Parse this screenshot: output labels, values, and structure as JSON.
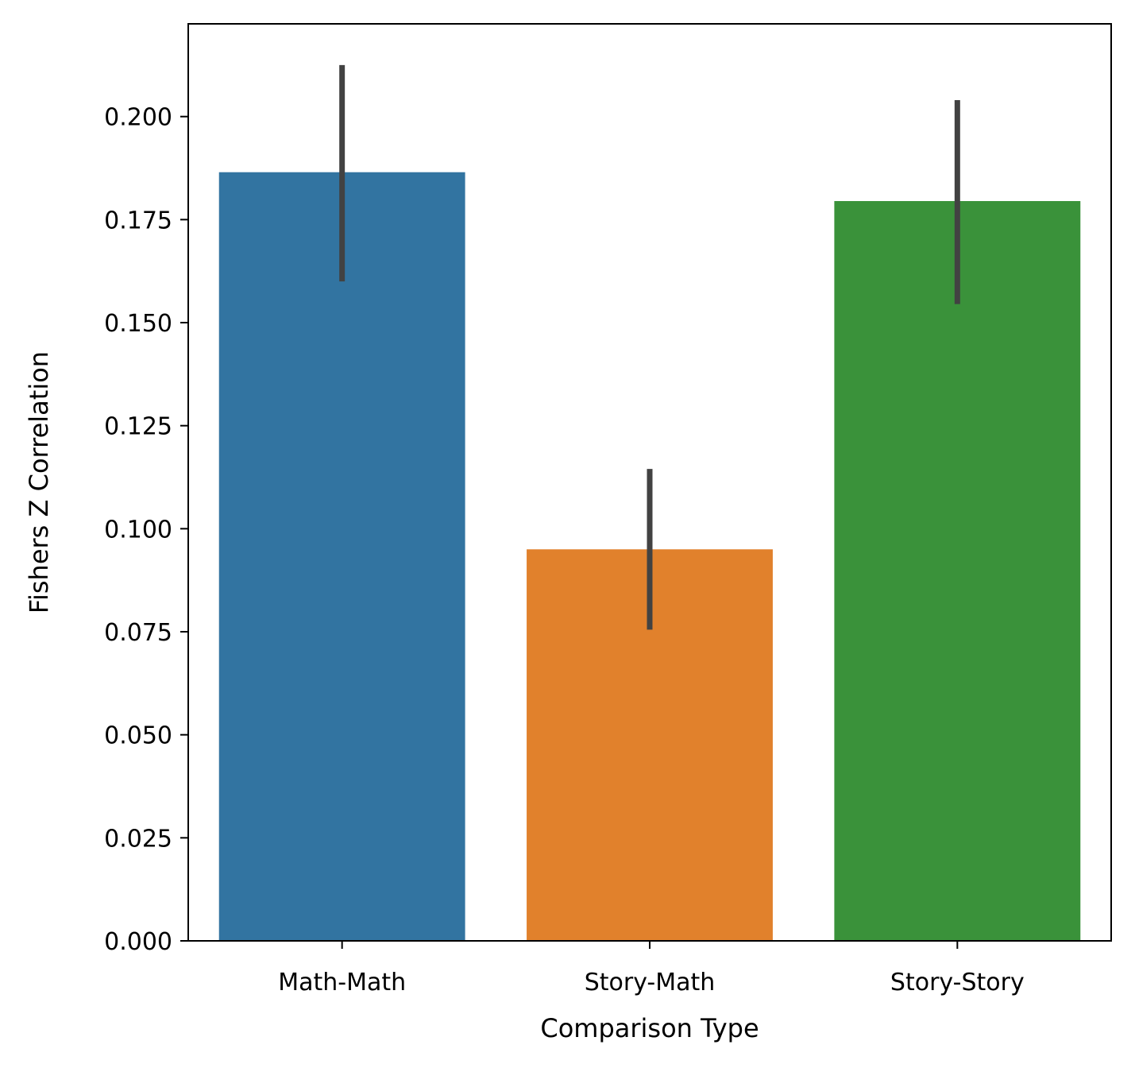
{
  "chart_data": {
    "type": "bar",
    "title": "",
    "xlabel": "Comparison Type",
    "ylabel": "Fishers Z Correlation",
    "categories": [
      "Math-Math",
      "Story-Math",
      "Story-Story"
    ],
    "values": [
      0.1865,
      0.095,
      0.1795
    ],
    "error_low": [
      0.16,
      0.0755,
      0.1545
    ],
    "error_high": [
      0.2125,
      0.1145,
      0.204
    ],
    "colors": [
      "#3274a1",
      "#e1812c",
      "#3a923a"
    ],
    "error_color": "#424242",
    "ylim": [
      0,
      0.2225
    ],
    "yticks": [
      0.0,
      0.025,
      0.05,
      0.075,
      0.1,
      0.125,
      0.15,
      0.175,
      0.2
    ],
    "ytick_labels": [
      "0.000",
      "0.025",
      "0.050",
      "0.075",
      "0.100",
      "0.125",
      "0.150",
      "0.175",
      "0.200"
    ],
    "grid": false,
    "legend": "none"
  }
}
